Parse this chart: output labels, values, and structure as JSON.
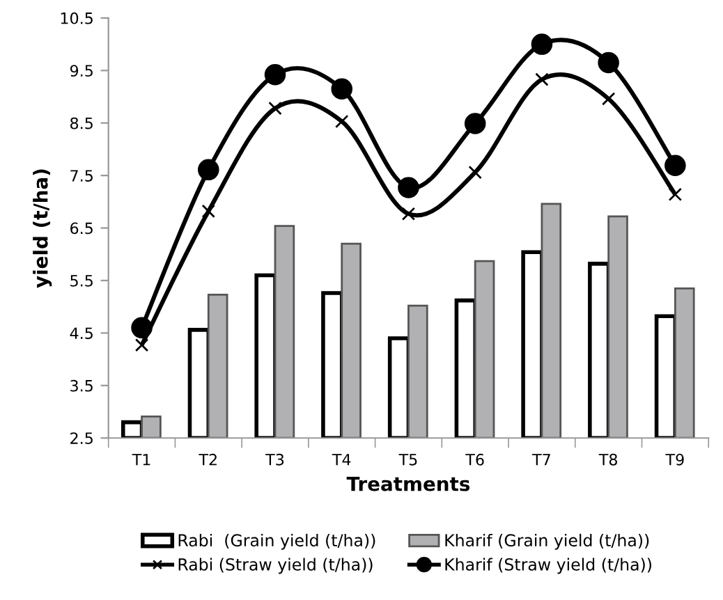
{
  "chart_data": {
    "type": "bar",
    "xlabel": "Treatments",
    "ylabel": "yield (t/ha)",
    "categories": [
      "T1",
      "T2",
      "T3",
      "T4",
      "T5",
      "T6",
      "T7",
      "T8",
      "T9"
    ],
    "series": [
      {
        "name": "Rabi  (Grain yield (t/ha))",
        "color": "#ffffff",
        "values": [
          2.8,
          4.56,
          5.6,
          5.26,
          4.4,
          5.12,
          6.04,
          5.82,
          4.82
        ]
      },
      {
        "name": "Kharif (Grain yield (t/ha))",
        "color": "#b1b1b3",
        "values": [
          2.91,
          5.23,
          6.54,
          6.2,
          5.02,
          5.87,
          6.96,
          6.72,
          5.35
        ]
      },
      {
        "name": "Rabi (Straw yield (t/ha))",
        "type": "line",
        "color": "#000000",
        "marker": "cross",
        "values": [
          4.27,
          6.82,
          8.78,
          8.53,
          6.77,
          7.56,
          9.33,
          8.96,
          7.14
        ]
      },
      {
        "name": "Kharif (Straw yield (t/ha))",
        "type": "line",
        "color": "#000000",
        "marker": "circle",
        "values": [
          4.6,
          7.61,
          9.42,
          9.15,
          7.27,
          8.49,
          10.0,
          9.65,
          7.69
        ]
      }
    ],
    "ylim": [
      2.5,
      10.5
    ],
    "yticks": [
      2.5,
      3.5,
      4.5,
      5.5,
      6.5,
      7.5,
      8.5,
      9.5,
      10.5
    ],
    "grid": false,
    "legend": "bottom"
  }
}
